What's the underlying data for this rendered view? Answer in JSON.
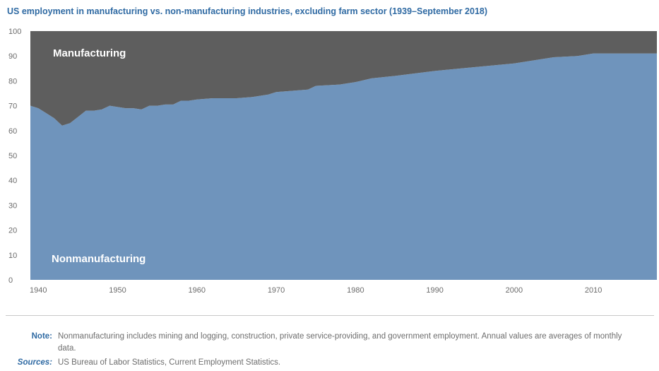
{
  "chart_data": {
    "type": "area",
    "stacked": true,
    "title": "US employment in manufacturing vs. non-manufacturing industries, excluding farm sector (1939–September 2018)",
    "ylim": [
      0,
      100
    ],
    "yticks": [
      0,
      10,
      20,
      30,
      40,
      50,
      60,
      70,
      80,
      90,
      100
    ],
    "xlim": [
      1939,
      2018
    ],
    "xticks": [
      1940,
      1950,
      1960,
      1970,
      1980,
      1990,
      2000,
      2010
    ],
    "x": [
      1939,
      1940,
      1941,
      1942,
      1943,
      1944,
      1945,
      1946,
      1947,
      1948,
      1949,
      1950,
      1951,
      1952,
      1953,
      1954,
      1955,
      1956,
      1957,
      1958,
      1959,
      1960,
      1962,
      1965,
      1967,
      1969,
      1970,
      1972,
      1974,
      1975,
      1978,
      1980,
      1982,
      1985,
      1990,
      1995,
      2000,
      2005,
      2008,
      2010,
      2015,
      2018
    ],
    "series": [
      {
        "name": "Nonmanufacturing",
        "color": "#6f94bc",
        "values": [
          70,
          69,
          67,
          65,
          62,
          63,
          65.5,
          68,
          68,
          68.5,
          70,
          69.5,
          69,
          69,
          68.5,
          70,
          70,
          70.5,
          70.5,
          72,
          72,
          72.5,
          73,
          73,
          73.5,
          74.5,
          75.5,
          76,
          76.5,
          78,
          78.5,
          79.5,
          81,
          82,
          84,
          85.5,
          87,
          89.5,
          90,
          91,
          91,
          91
        ]
      },
      {
        "name": "Manufacturing",
        "color": "#5e5e5e",
        "values": [
          30,
          31,
          33,
          35,
          38,
          37,
          34.5,
          32,
          32,
          31.5,
          30,
          30.5,
          31,
          31,
          31.5,
          30,
          30,
          29.5,
          29.5,
          28,
          28,
          27.5,
          27,
          27,
          26.5,
          25.5,
          24.5,
          24,
          23.5,
          22,
          21.5,
          20.5,
          19,
          18,
          16,
          14.5,
          13,
          10.5,
          10,
          9,
          9,
          9
        ]
      }
    ],
    "grid": false,
    "legend": "none"
  },
  "notes": {
    "note_label": "Note:",
    "note_text": "Nonmanufacturing includes mining and logging, construction, private service-providing, and government employment. Annual values are averages of monthly data.",
    "sources_label": "Sources:",
    "sources_text": "US Bureau of Labor Statistics, Current Employment Statistics."
  }
}
